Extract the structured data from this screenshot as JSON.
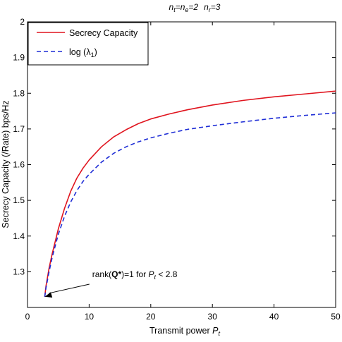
{
  "chart_data": {
    "type": "line",
    "title": {
      "nt": "n",
      "nt_sub": "t",
      "eq1": "=",
      "ne": "n",
      "ne_sub": "e",
      "eq2": "=2",
      "nr": "n",
      "nr_sub": "r",
      "eq3": "=3"
    },
    "xlabel": {
      "text": "Transmit power ",
      "var": "P",
      "sub": "t"
    },
    "ylabel": "Secrecy Capacity (/Rate) bps/Hz",
    "xlim": [
      0,
      50
    ],
    "ylim": [
      1.2,
      2.0
    ],
    "xticks": [
      "0",
      "10",
      "20",
      "30",
      "40",
      "50"
    ],
    "xtick_values": [
      0,
      10,
      20,
      30,
      40,
      50
    ],
    "yticks": [
      "1.3",
      "1.4",
      "1.5",
      "1.6",
      "1.7",
      "1.8",
      "1.9",
      "2"
    ],
    "ytick_values": [
      1.3,
      1.4,
      1.5,
      1.6,
      1.7,
      1.8,
      1.9,
      2.0
    ],
    "grid": false,
    "legend": {
      "position": "top-left",
      "entries": [
        {
          "label": "Secrecy Capacity",
          "color": "#e0141e",
          "dash": "solid"
        },
        {
          "label": "log (λ",
          "label_sub": "1",
          "label_end": ")",
          "color": "#1f2ed6",
          "dash": "dashed"
        }
      ]
    },
    "series": [
      {
        "name": "Secrecy Capacity",
        "color": "#e0141e",
        "dash": "solid",
        "x": [
          2.8,
          3,
          3.5,
          4,
          5,
          6,
          7,
          8,
          9,
          10,
          12,
          14,
          16,
          18,
          20,
          23,
          26,
          30,
          35,
          40,
          45,
          50
        ],
        "y": [
          1.23,
          1.26,
          1.31,
          1.35,
          1.42,
          1.477,
          1.525,
          1.562,
          1.59,
          1.613,
          1.65,
          1.678,
          1.698,
          1.715,
          1.728,
          1.742,
          1.754,
          1.767,
          1.78,
          1.79,
          1.798,
          1.806
        ]
      },
      {
        "name": "log (λ1)",
        "color": "#1f2ed6",
        "dash": "dashed",
        "x": [
          2.8,
          3,
          3.5,
          4,
          5,
          6,
          7,
          8,
          9,
          10,
          12,
          14,
          16,
          18,
          20,
          23,
          26,
          30,
          35,
          40,
          45,
          50
        ],
        "y": [
          1.23,
          1.255,
          1.3,
          1.34,
          1.405,
          1.455,
          1.495,
          1.527,
          1.553,
          1.573,
          1.607,
          1.632,
          1.65,
          1.664,
          1.675,
          1.688,
          1.699,
          1.709,
          1.72,
          1.73,
          1.738,
          1.745
        ]
      }
    ],
    "annotation": {
      "pre": "rank(",
      "bold": "Q*",
      "post": ")=1 for ",
      "var": "P",
      "sub": "t",
      "end": " < 2.8",
      "arrow_to": [
        2.8,
        1.23
      ],
      "text_at": [
        10.5,
        1.285
      ]
    }
  }
}
